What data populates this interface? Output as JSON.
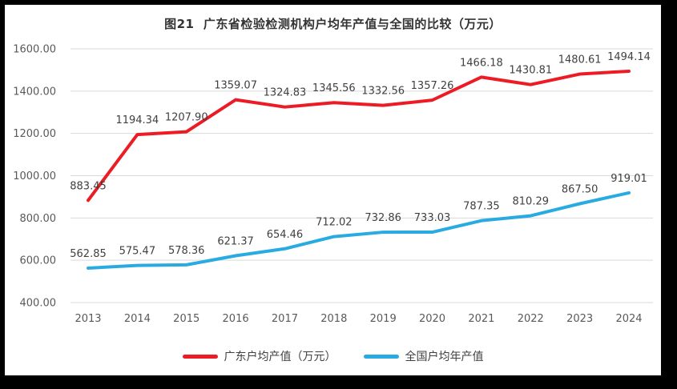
{
  "chart_data": {
    "type": "line",
    "title": "图21  广东省检验检测机构户均年产值与全国的比较（万元）",
    "categories": [
      "2013",
      "2014",
      "2015",
      "2016",
      "2017",
      "2018",
      "2019",
      "2020",
      "2021",
      "2022",
      "2023",
      "2024"
    ],
    "series": [
      {
        "name": "广东户均产值（万元）",
        "color": "#ED1C24",
        "values": [
          883.45,
          1194.34,
          1207.9,
          1359.07,
          1324.83,
          1345.56,
          1332.56,
          1357.26,
          1466.18,
          1430.81,
          1480.61,
          1494.14
        ]
      },
      {
        "name": "全国户均年产值",
        "color": "#29ABE2",
        "values": [
          562.85,
          575.47,
          578.36,
          621.37,
          654.46,
          712.02,
          732.86,
          733.03,
          787.35,
          810.29,
          867.5,
          919.01
        ]
      }
    ],
    "ylim": [
      400,
      1600
    ],
    "ytick_step": 200,
    "ytick_decimals": 2,
    "data_label_decimals": 2,
    "grid": true,
    "legend_position": "bottom"
  },
  "colors": {
    "grid": "#D9D9D9",
    "tick_text": "#595959",
    "data_label_text": "#404040",
    "title_text": "#333333",
    "frame": "#000000",
    "chart_background": "#FFFFFF"
  }
}
